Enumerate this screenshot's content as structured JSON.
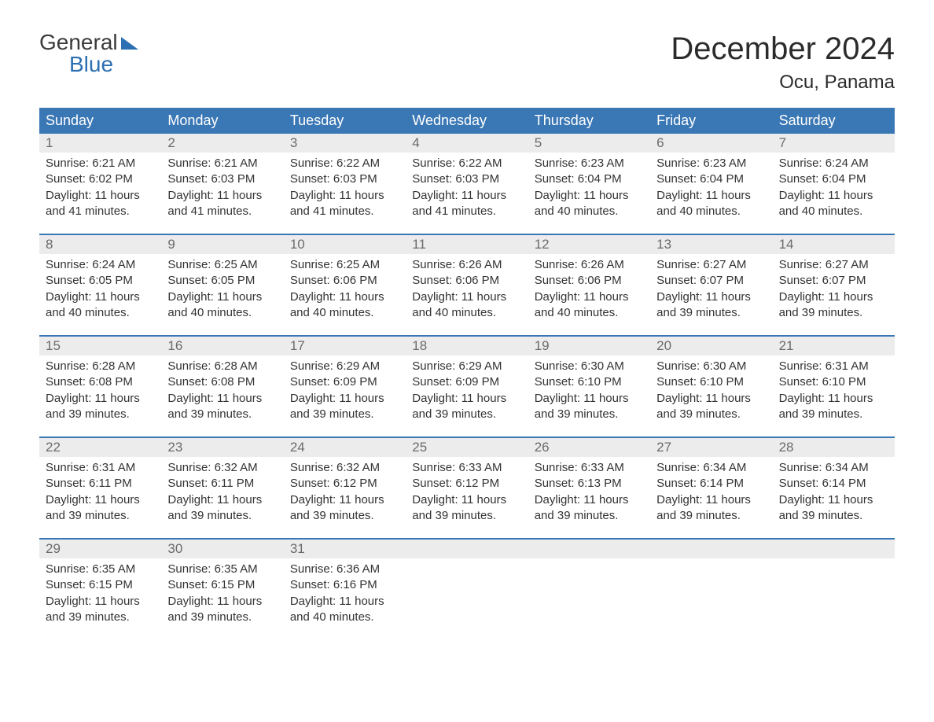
{
  "brand": {
    "line1": "General",
    "line2": "Blue"
  },
  "title": "December 2024",
  "location": "Ocu, Panama",
  "colors": {
    "header_bg": "#3a77b5",
    "header_text": "#ffffff",
    "daynum_bg": "#ececec",
    "daynum_text": "#6b6b6b",
    "week_border": "#3a77b5",
    "brand_blue": "#2c6fb3",
    "body_text": "#333333",
    "page_bg": "#ffffff"
  },
  "fonts": {
    "title_size_pt": 30,
    "location_size_pt": 18,
    "header_size_pt": 14,
    "cell_size_pt": 11
  },
  "day_labels": [
    "Sunday",
    "Monday",
    "Tuesday",
    "Wednesday",
    "Thursday",
    "Friday",
    "Saturday"
  ],
  "weeks": [
    [
      {
        "num": "1",
        "sunrise": "6:21 AM",
        "sunset": "6:02 PM",
        "daylight": "11 hours and 41 minutes."
      },
      {
        "num": "2",
        "sunrise": "6:21 AM",
        "sunset": "6:03 PM",
        "daylight": "11 hours and 41 minutes."
      },
      {
        "num": "3",
        "sunrise": "6:22 AM",
        "sunset": "6:03 PM",
        "daylight": "11 hours and 41 minutes."
      },
      {
        "num": "4",
        "sunrise": "6:22 AM",
        "sunset": "6:03 PM",
        "daylight": "11 hours and 41 minutes."
      },
      {
        "num": "5",
        "sunrise": "6:23 AM",
        "sunset": "6:04 PM",
        "daylight": "11 hours and 40 minutes."
      },
      {
        "num": "6",
        "sunrise": "6:23 AM",
        "sunset": "6:04 PM",
        "daylight": "11 hours and 40 minutes."
      },
      {
        "num": "7",
        "sunrise": "6:24 AM",
        "sunset": "6:04 PM",
        "daylight": "11 hours and 40 minutes."
      }
    ],
    [
      {
        "num": "8",
        "sunrise": "6:24 AM",
        "sunset": "6:05 PM",
        "daylight": "11 hours and 40 minutes."
      },
      {
        "num": "9",
        "sunrise": "6:25 AM",
        "sunset": "6:05 PM",
        "daylight": "11 hours and 40 minutes."
      },
      {
        "num": "10",
        "sunrise": "6:25 AM",
        "sunset": "6:06 PM",
        "daylight": "11 hours and 40 minutes."
      },
      {
        "num": "11",
        "sunrise": "6:26 AM",
        "sunset": "6:06 PM",
        "daylight": "11 hours and 40 minutes."
      },
      {
        "num": "12",
        "sunrise": "6:26 AM",
        "sunset": "6:06 PM",
        "daylight": "11 hours and 40 minutes."
      },
      {
        "num": "13",
        "sunrise": "6:27 AM",
        "sunset": "6:07 PM",
        "daylight": "11 hours and 39 minutes."
      },
      {
        "num": "14",
        "sunrise": "6:27 AM",
        "sunset": "6:07 PM",
        "daylight": "11 hours and 39 minutes."
      }
    ],
    [
      {
        "num": "15",
        "sunrise": "6:28 AM",
        "sunset": "6:08 PM",
        "daylight": "11 hours and 39 minutes."
      },
      {
        "num": "16",
        "sunrise": "6:28 AM",
        "sunset": "6:08 PM",
        "daylight": "11 hours and 39 minutes."
      },
      {
        "num": "17",
        "sunrise": "6:29 AM",
        "sunset": "6:09 PM",
        "daylight": "11 hours and 39 minutes."
      },
      {
        "num": "18",
        "sunrise": "6:29 AM",
        "sunset": "6:09 PM",
        "daylight": "11 hours and 39 minutes."
      },
      {
        "num": "19",
        "sunrise": "6:30 AM",
        "sunset": "6:10 PM",
        "daylight": "11 hours and 39 minutes."
      },
      {
        "num": "20",
        "sunrise": "6:30 AM",
        "sunset": "6:10 PM",
        "daylight": "11 hours and 39 minutes."
      },
      {
        "num": "21",
        "sunrise": "6:31 AM",
        "sunset": "6:10 PM",
        "daylight": "11 hours and 39 minutes."
      }
    ],
    [
      {
        "num": "22",
        "sunrise": "6:31 AM",
        "sunset": "6:11 PM",
        "daylight": "11 hours and 39 minutes."
      },
      {
        "num": "23",
        "sunrise": "6:32 AM",
        "sunset": "6:11 PM",
        "daylight": "11 hours and 39 minutes."
      },
      {
        "num": "24",
        "sunrise": "6:32 AM",
        "sunset": "6:12 PM",
        "daylight": "11 hours and 39 minutes."
      },
      {
        "num": "25",
        "sunrise": "6:33 AM",
        "sunset": "6:12 PM",
        "daylight": "11 hours and 39 minutes."
      },
      {
        "num": "26",
        "sunrise": "6:33 AM",
        "sunset": "6:13 PM",
        "daylight": "11 hours and 39 minutes."
      },
      {
        "num": "27",
        "sunrise": "6:34 AM",
        "sunset": "6:14 PM",
        "daylight": "11 hours and 39 minutes."
      },
      {
        "num": "28",
        "sunrise": "6:34 AM",
        "sunset": "6:14 PM",
        "daylight": "11 hours and 39 minutes."
      }
    ],
    [
      {
        "num": "29",
        "sunrise": "6:35 AM",
        "sunset": "6:15 PM",
        "daylight": "11 hours and 39 minutes."
      },
      {
        "num": "30",
        "sunrise": "6:35 AM",
        "sunset": "6:15 PM",
        "daylight": "11 hours and 39 minutes."
      },
      {
        "num": "31",
        "sunrise": "6:36 AM",
        "sunset": "6:16 PM",
        "daylight": "11 hours and 40 minutes."
      },
      {
        "empty": true
      },
      {
        "empty": true
      },
      {
        "empty": true
      },
      {
        "empty": true
      }
    ]
  ],
  "labels": {
    "sunrise": "Sunrise:",
    "sunset": "Sunset:",
    "daylight": "Daylight:"
  }
}
